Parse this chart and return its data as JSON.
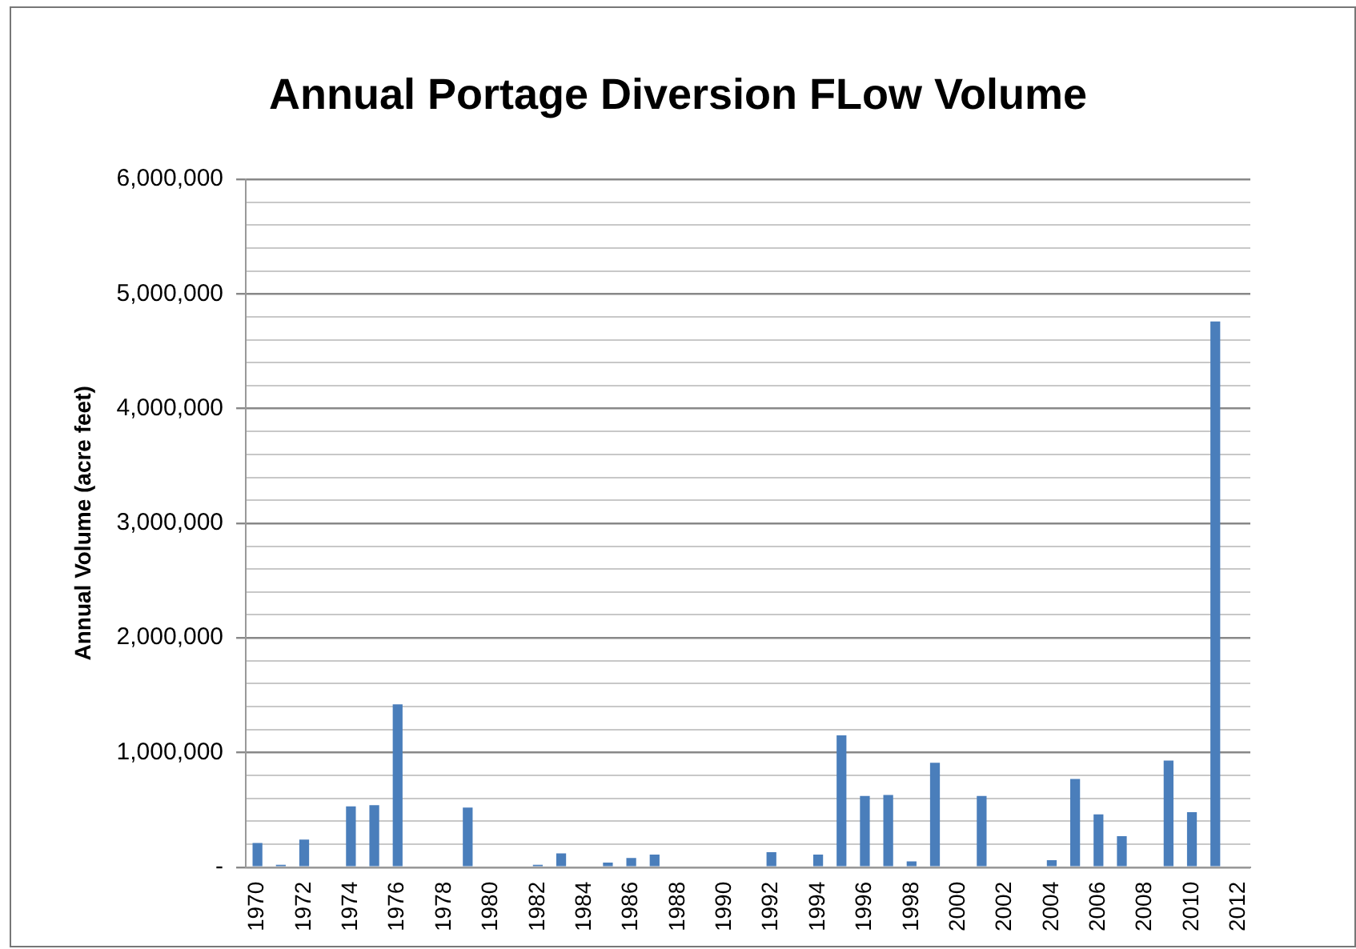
{
  "chart_data": {
    "type": "bar",
    "title": "Annual Portage Diversion FLow Volume",
    "ylabel": "Annual Volume (acre feet)",
    "categories": [
      "1970",
      null,
      "1972",
      null,
      "1974",
      null,
      "1976",
      null,
      "1978",
      null,
      "1980",
      null,
      "1982",
      null,
      "1984",
      null,
      "1986",
      null,
      "1988",
      null,
      "1990",
      null,
      "1992",
      null,
      "1994",
      null,
      "1996",
      null,
      "1998",
      null,
      "2000",
      null,
      "2002",
      null,
      "2004",
      null,
      "2006",
      null,
      "2008",
      null,
      "2010",
      null,
      "2012"
    ],
    "values": [
      210000,
      20000,
      240000,
      0,
      530000,
      540000,
      1420000,
      0,
      0,
      520000,
      0,
      0,
      20000,
      120000,
      0,
      40000,
      80000,
      110000,
      0,
      0,
      0,
      0,
      130000,
      0,
      110000,
      1150000,
      620000,
      630000,
      50000,
      910000,
      0,
      620000,
      0,
      0,
      60000,
      770000,
      460000,
      270000,
      0,
      930000,
      480000,
      4760000,
      0
    ],
    "color": "#4a7ebb",
    "ylim": [
      0,
      6000000
    ],
    "yticks": [
      {
        "value": 0,
        "label": "-"
      },
      {
        "value": 200000,
        "label": null
      },
      {
        "value": 400000,
        "label": null
      },
      {
        "value": 600000,
        "label": null
      },
      {
        "value": 800000,
        "label": null
      },
      {
        "value": 1000000,
        "label": "1,000,000"
      },
      {
        "value": 1200000,
        "label": null
      },
      {
        "value": 1400000,
        "label": null
      },
      {
        "value": 1600000,
        "label": null
      },
      {
        "value": 1800000,
        "label": null
      },
      {
        "value": 2000000,
        "label": "2,000,000"
      },
      {
        "value": 2200000,
        "label": null
      },
      {
        "value": 2400000,
        "label": null
      },
      {
        "value": 2600000,
        "label": null
      },
      {
        "value": 2800000,
        "label": null
      },
      {
        "value": 3000000,
        "label": "3,000,000"
      },
      {
        "value": 3200000,
        "label": null
      },
      {
        "value": 3400000,
        "label": null
      },
      {
        "value": 3600000,
        "label": null
      },
      {
        "value": 3800000,
        "label": null
      },
      {
        "value": 4000000,
        "label": "4,000,000"
      },
      {
        "value": 4200000,
        "label": null
      },
      {
        "value": 4400000,
        "label": null
      },
      {
        "value": 4600000,
        "label": null
      },
      {
        "value": 4800000,
        "label": null
      },
      {
        "value": 5000000,
        "label": "5,000,000"
      },
      {
        "value": 5200000,
        "label": null
      },
      {
        "value": 5400000,
        "label": null
      },
      {
        "value": 5600000,
        "label": null
      },
      {
        "value": 5800000,
        "label": null
      },
      {
        "value": 6000000,
        "label": "6,000,000"
      }
    ],
    "grid": "y"
  }
}
